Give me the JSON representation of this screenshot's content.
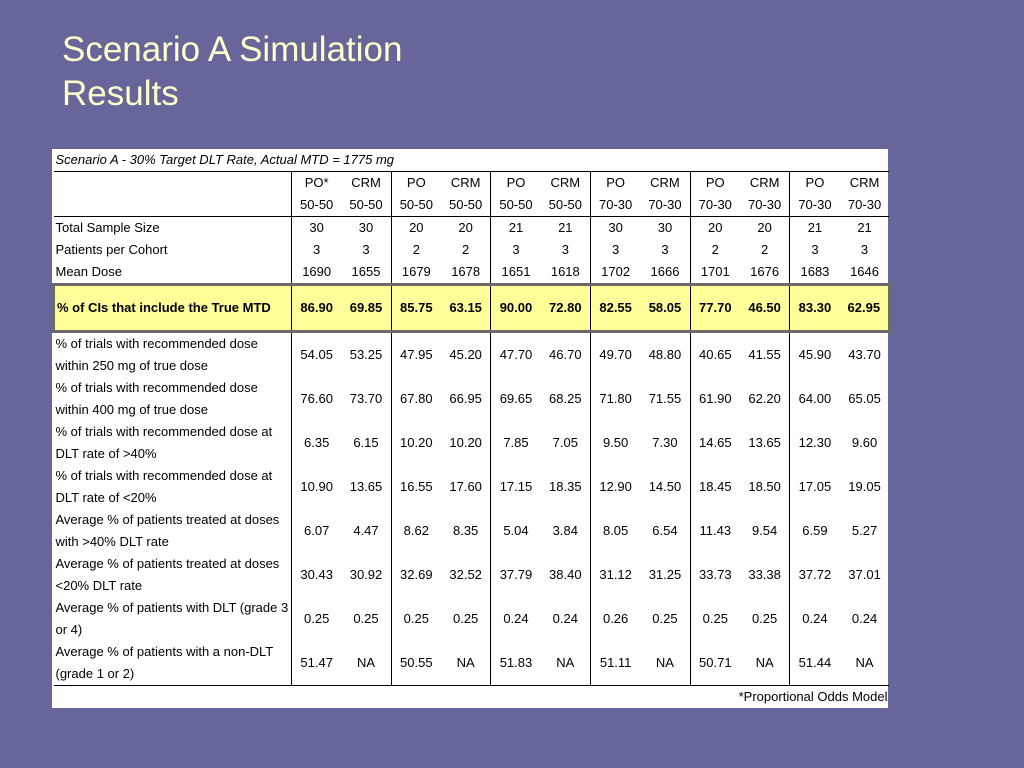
{
  "slide": {
    "title_line1": "Scenario A Simulation",
    "title_line2": "Results"
  },
  "table": {
    "caption": "Scenario A - 30% Target DLT Rate, Actual MTD = 1775 mg",
    "header_methods": [
      "PO*",
      "CRM",
      "PO",
      "CRM",
      "PO",
      "CRM",
      "PO",
      "CRM",
      "PO",
      "CRM",
      "PO",
      "CRM"
    ],
    "header_priors": [
      "50-50",
      "50-50",
      "50-50",
      "50-50",
      "50-50",
      "50-50",
      "70-30",
      "70-30",
      "70-30",
      "70-30",
      "70-30",
      "70-30"
    ],
    "design_rows": [
      {
        "label": "Total Sample Size",
        "values": [
          "30",
          "30",
          "20",
          "20",
          "21",
          "21",
          "30",
          "30",
          "20",
          "20",
          "21",
          "21"
        ]
      },
      {
        "label": "Patients per Cohort",
        "values": [
          "3",
          "3",
          "2",
          "2",
          "3",
          "3",
          "3",
          "3",
          "2",
          "2",
          "3",
          "3"
        ]
      },
      {
        "label": "Mean Dose",
        "values": [
          "1690",
          "1655",
          "1679",
          "1678",
          "1651",
          "1618",
          "1702",
          "1666",
          "1701",
          "1676",
          "1683",
          "1646"
        ]
      }
    ],
    "highlight_row": {
      "label": "% of CIs that include the True MTD",
      "values": [
        "86.90",
        "69.85",
        "85.75",
        "63.15",
        "90.00",
        "72.80",
        "82.55",
        "58.05",
        "77.70",
        "46.50",
        "83.30",
        "62.95"
      ]
    },
    "result_rows": [
      {
        "label": "% of trials with recommended dose within 250 mg of true dose",
        "values": [
          "54.05",
          "53.25",
          "47.95",
          "45.20",
          "47.70",
          "46.70",
          "49.70",
          "48.80",
          "40.65",
          "41.55",
          "45.90",
          "43.70"
        ]
      },
      {
        "label": "% of trials with recommended dose within 400 mg of true dose",
        "values": [
          "76.60",
          "73.70",
          "67.80",
          "66.95",
          "69.65",
          "68.25",
          "71.80",
          "71.55",
          "61.90",
          "62.20",
          "64.00",
          "65.05"
        ]
      },
      {
        "label": "% of trials with recommended dose at DLT rate of >40%",
        "values": [
          "6.35",
          "6.15",
          "10.20",
          "10.20",
          "7.85",
          "7.05",
          "9.50",
          "7.30",
          "14.65",
          "13.65",
          "12.30",
          "9.60"
        ]
      },
      {
        "label": "% of trials with recommended dose at DLT rate of <20%",
        "values": [
          "10.90",
          "13.65",
          "16.55",
          "17.60",
          "17.15",
          "18.35",
          "12.90",
          "14.50",
          "18.45",
          "18.50",
          "17.05",
          "19.05"
        ]
      },
      {
        "label": "Average % of patients treated at doses with >40% DLT rate",
        "values": [
          "6.07",
          "4.47",
          "8.62",
          "8.35",
          "5.04",
          "3.84",
          "8.05",
          "6.54",
          "11.43",
          "9.54",
          "6.59",
          "5.27"
        ]
      },
      {
        "label": "Average % of patients treated at doses <20% DLT rate",
        "values": [
          "30.43",
          "30.92",
          "32.69",
          "32.52",
          "37.79",
          "38.40",
          "31.12",
          "31.25",
          "33.73",
          "33.38",
          "37.72",
          "37.01"
        ]
      },
      {
        "label": "Average % of patients with DLT (grade 3 or 4)",
        "values": [
          "0.25",
          "0.25",
          "0.25",
          "0.25",
          "0.24",
          "0.24",
          "0.26",
          "0.25",
          "0.25",
          "0.25",
          "0.24",
          "0.24"
        ]
      },
      {
        "label": "Average % of patients with a non-DLT (grade 1 or 2)",
        "values": [
          "51.47",
          "NA",
          "50.55",
          "NA",
          "51.83",
          "NA",
          "51.11",
          "NA",
          "50.71",
          "NA",
          "51.44",
          "NA"
        ]
      }
    ],
    "footnote": "*Proportional Odds Model"
  }
}
